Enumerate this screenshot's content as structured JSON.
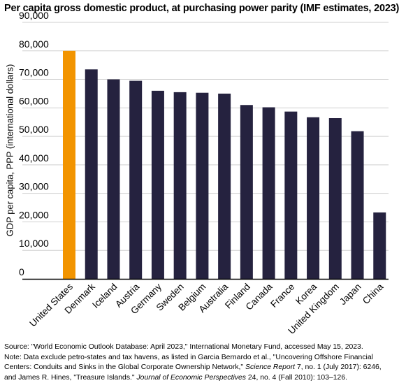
{
  "title": "Per capita gross domestic product, at purchasing power parity (IMF estimates, 2023)",
  "colors": {
    "highlight": "#f29400",
    "bar": "#25223f",
    "grid": "#cfcfcf",
    "axis": "#000000"
  },
  "chart_data": {
    "type": "bar",
    "title": "Per capita gross domestic product, at purchasing power parity (IMF estimates, 2023)",
    "xlabel": "",
    "ylabel": "GDP per capita, PPP (international dollars)",
    "ylim": [
      0,
      90000
    ],
    "yticks": [
      0,
      10000,
      20000,
      30000,
      40000,
      50000,
      60000,
      70000,
      80000,
      90000
    ],
    "ytick_labels": [
      "0",
      "10,000",
      "20,000",
      "30,000",
      "40,000",
      "50,000",
      "60,000",
      "70,000",
      "80,000",
      "90,000"
    ],
    "grid": true,
    "highlight_category": "United States",
    "categories": [
      "United States",
      "Denmark",
      "Iceland",
      "Austria",
      "Germany",
      "Sweden",
      "Belgium",
      "Australia",
      "Finland",
      "Canada",
      "France",
      "Korea",
      "United Kingdom",
      "Japan",
      "China"
    ],
    "values": [
      80000,
      73500,
      70000,
      69500,
      66000,
      65500,
      65300,
      65000,
      61000,
      60200,
      58700,
      56700,
      56400,
      51800,
      23300
    ]
  },
  "notes": {
    "source": "Source: \"World Economic Outlook Database: April 2023,\" International Monetary Fund, accessed May 15, 2023.",
    "note_line1": "Note: Data exclude petro-states and tax havens, as listed in Garcia Bernardo et al., \"Uncovering Offshore Financial",
    "note_line2_pre": "Centers: Conduits and Sinks in the Global Corporate Ownership Network,\" ",
    "note_line2_journal": "Science Report",
    "note_line2_post": " 7, no. 1 (July 2017): 6246,",
    "note_line3_pre": "and James R. Hines, \"Treasure Islands.\" ",
    "note_line3_journal": "Journal of Economic Perspectives",
    "note_line3_post": " 24, no. 4 (Fall 2010): 103–126."
  }
}
